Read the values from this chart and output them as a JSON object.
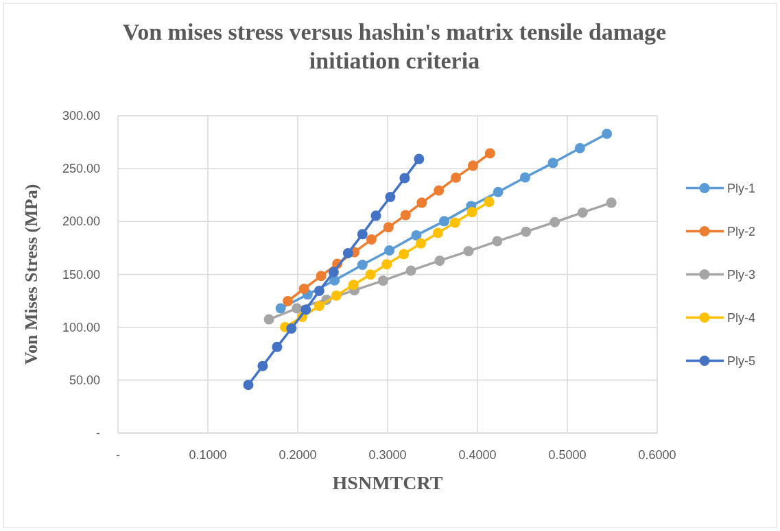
{
  "chart_data": {
    "type": "line",
    "title": "Von mises stress versus hashin's matrix tensile damage initiation criteria",
    "xlabel": "HSNMTCRT",
    "ylabel": "Von Mises Stress (MPa)",
    "xlim": [
      0,
      0.6
    ],
    "ylim": [
      0,
      300
    ],
    "xticks": [
      {
        "value": 0,
        "label": "-"
      },
      {
        "value": 0.1,
        "label": "0.1000"
      },
      {
        "value": 0.2,
        "label": "0.2000"
      },
      {
        "value": 0.3,
        "label": "0.3000"
      },
      {
        "value": 0.4,
        "label": "0.4000"
      },
      {
        "value": 0.5,
        "label": "0.5000"
      },
      {
        "value": 0.6,
        "label": "0.6000"
      }
    ],
    "yticks": [
      {
        "value": 0,
        "label": "-"
      },
      {
        "value": 50,
        "label": "50.00"
      },
      {
        "value": 100,
        "label": "100.00"
      },
      {
        "value": 150,
        "label": "150.00"
      },
      {
        "value": 200,
        "label": "200.00"
      },
      {
        "value": 250,
        "label": "250.00"
      },
      {
        "value": 300,
        "label": "300.00"
      }
    ],
    "grid": true,
    "legend": "right",
    "marker": "circle",
    "line_style": "solid",
    "series": [
      {
        "name": "Ply-1",
        "color": "#5b9bd5",
        "x": [
          0.181,
          0.211,
          0.241,
          0.272,
          0.302,
          0.332,
          0.363,
          0.393,
          0.423,
          0.453,
          0.484,
          0.514,
          0.544
        ],
        "values": [
          117.9,
          131.0,
          144.3,
          159.1,
          172.7,
          187.0,
          200.3,
          214.7,
          227.9,
          241.7,
          255.4,
          269.4,
          283.0
        ]
      },
      {
        "name": "Ply-2",
        "color": "#ed7d31",
        "x": [
          0.189,
          0.207,
          0.226,
          0.244,
          0.263,
          0.282,
          0.301,
          0.32,
          0.338,
          0.357,
          0.376,
          0.395,
          0.414
        ],
        "values": [
          124.8,
          136.4,
          148.5,
          160.0,
          171.0,
          183.0,
          194.6,
          206.1,
          217.8,
          229.4,
          241.5,
          252.8,
          264.5
        ]
      },
      {
        "name": "Ply-3",
        "color": "#a5a5a5",
        "x": [
          0.168,
          0.199,
          0.232,
          0.263,
          0.295,
          0.326,
          0.358,
          0.39,
          0.422,
          0.454,
          0.486,
          0.517,
          0.549
        ],
        "values": [
          107.5,
          117.9,
          126.1,
          135.0,
          144.1,
          153.6,
          163.0,
          172.0,
          181.4,
          190.4,
          199.4,
          208.5,
          217.8
        ]
      },
      {
        "name": "Ply-4",
        "color": "#ffc000",
        "x": [
          0.186,
          0.205,
          0.224,
          0.243,
          0.262,
          0.281,
          0.299,
          0.318,
          0.337,
          0.356,
          0.375,
          0.394,
          0.413
        ],
        "values": [
          100.1,
          109.8,
          120.2,
          129.9,
          140.1,
          149.9,
          159.6,
          169.2,
          179.3,
          189.2,
          199.0,
          208.9,
          218.6
        ]
      },
      {
        "name": "Ply-5",
        "color": "#4472c4",
        "x": [
          0.145,
          0.161,
          0.177,
          0.193,
          0.209,
          0.224,
          0.24,
          0.256,
          0.272,
          0.287,
          0.303,
          0.319,
          0.335
        ],
        "values": [
          45.5,
          63.4,
          81.4,
          98.8,
          116.7,
          134.5,
          152.3,
          170.1,
          188.0,
          205.5,
          223.2,
          241.1,
          259.1
        ]
      }
    ]
  }
}
